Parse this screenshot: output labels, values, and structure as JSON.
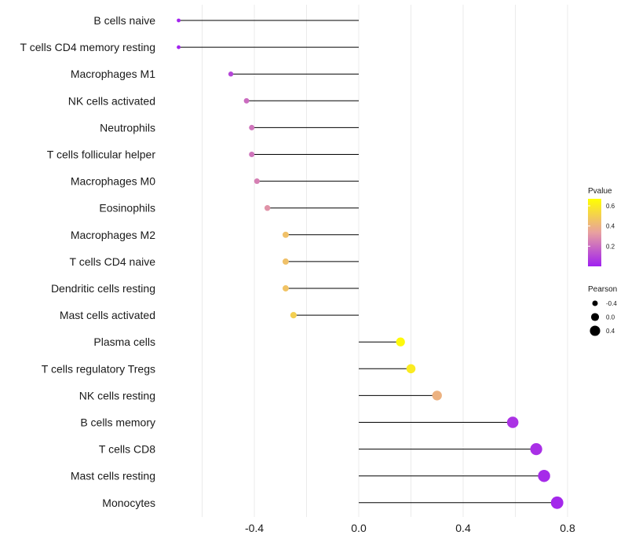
{
  "chart_data": {
    "type": "lollipop",
    "categories": [
      "B cells naive",
      "T cells CD4 memory resting",
      "Macrophages M1",
      "NK cells activated",
      "Neutrophils",
      "T cells follicular helper",
      "Macrophages M0",
      "Eosinophils",
      "Macrophages M2",
      "T cells CD4 naive",
      "Dendritic cells resting",
      "Mast cells activated",
      "Plasma cells",
      "T cells regulatory  Tregs ",
      "NK cells resting",
      "B cells memory",
      "T cells CD8",
      "Mast cells resting",
      "Monocytes"
    ],
    "pearson": [
      -0.69,
      -0.69,
      -0.49,
      -0.43,
      -0.41,
      -0.41,
      -0.39,
      -0.35,
      -0.28,
      -0.28,
      -0.28,
      -0.25,
      0.16,
      0.2,
      0.3,
      0.59,
      0.68,
      0.71,
      0.76
    ],
    "pvalue": [
      0.01,
      0.01,
      0.1,
      0.2,
      0.22,
      0.22,
      0.25,
      0.3,
      0.45,
      0.45,
      0.46,
      0.5,
      0.65,
      0.6,
      0.4,
      0.05,
      0.04,
      0.03,
      0.02
    ],
    "xlim": [
      -0.8,
      0.8
    ],
    "x_ticks": [
      -0.4,
      0.0,
      0.4,
      0.8
    ],
    "x_tick_labels": [
      "-0.4",
      "0.0",
      "0.4",
      "0.8"
    ],
    "baseline": 0.0,
    "legend_color": {
      "title": "Pvalue",
      "ticks": [
        0.2,
        0.4,
        0.6
      ],
      "tick_labels": [
        "0.2",
        "0.4",
        "0.6"
      ],
      "range": [
        0.0,
        0.67
      ],
      "colors": [
        "#a020f0",
        "#e8a0a0",
        "#ffff00"
      ]
    },
    "legend_size": {
      "title": "Pearson",
      "values": [
        -0.4,
        0.0,
        0.4
      ],
      "labels": [
        "-0.4",
        "0.0",
        "0.4"
      ]
    },
    "stem_color": "#000000",
    "grid_color": "#ebebeb"
  }
}
